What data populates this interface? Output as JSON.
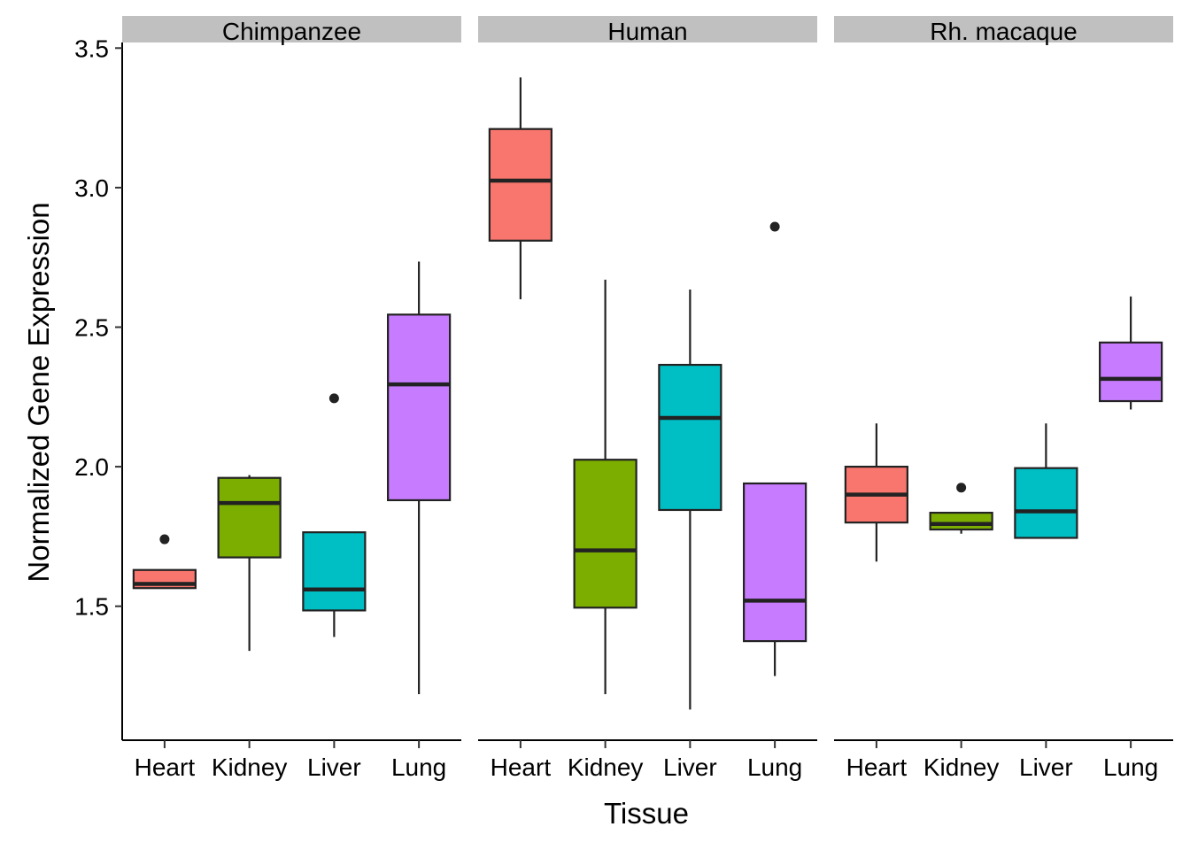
{
  "chart_data": {
    "type": "boxplot",
    "facets": [
      "Chimpanzee",
      "Human",
      "Rh. macaque"
    ],
    "categories": [
      "Heart",
      "Kidney",
      "Liver",
      "Lung"
    ],
    "xlabel": "Tissue",
    "ylabel": "Normalized Gene Expression",
    "yticks": [
      "1.5",
      "2.0",
      "2.5",
      "3.0",
      "3.5"
    ],
    "ylim": [
      1.02,
      3.52
    ],
    "colors": {
      "Heart": "#f8766d",
      "Kidney": "#7cae00",
      "Liver": "#00bfc4",
      "Lung": "#c77cff"
    },
    "boxes": {
      "Chimpanzee": [
        {
          "tissue": "Heart",
          "whisker_low": 1.565,
          "q1": 1.565,
          "median": 1.58,
          "q3": 1.63,
          "whisker_high": 1.63,
          "outliers": [
            1.74
          ]
        },
        {
          "tissue": "Kidney",
          "whisker_low": 1.34,
          "q1": 1.675,
          "median": 1.87,
          "q3": 1.96,
          "whisker_high": 1.97,
          "outliers": []
        },
        {
          "tissue": "Liver",
          "whisker_low": 1.39,
          "q1": 1.485,
          "median": 1.56,
          "q3": 1.765,
          "whisker_high": 1.765,
          "outliers": [
            2.245
          ]
        },
        {
          "tissue": "Lung",
          "whisker_low": 1.185,
          "q1": 1.88,
          "median": 2.295,
          "q3": 2.545,
          "whisker_high": 2.735,
          "outliers": []
        }
      ],
      "Human": [
        {
          "tissue": "Heart",
          "whisker_low": 2.6,
          "q1": 2.81,
          "median": 3.025,
          "q3": 3.21,
          "whisker_high": 3.395,
          "outliers": []
        },
        {
          "tissue": "Kidney",
          "whisker_low": 1.185,
          "q1": 1.495,
          "median": 1.7,
          "q3": 2.025,
          "whisker_high": 2.67,
          "outliers": []
        },
        {
          "tissue": "Liver",
          "whisker_low": 1.13,
          "q1": 1.845,
          "median": 2.175,
          "q3": 2.365,
          "whisker_high": 2.635,
          "outliers": []
        },
        {
          "tissue": "Lung",
          "whisker_low": 1.25,
          "q1": 1.375,
          "median": 1.52,
          "q3": 1.94,
          "whisker_high": 1.94,
          "outliers": [
            2.86
          ]
        }
      ],
      "Rh. macaque": [
        {
          "tissue": "Heart",
          "whisker_low": 1.66,
          "q1": 1.8,
          "median": 1.9,
          "q3": 2.0,
          "whisker_high": 2.155,
          "outliers": []
        },
        {
          "tissue": "Kidney",
          "whisker_low": 1.76,
          "q1": 1.775,
          "median": 1.795,
          "q3": 1.835,
          "whisker_high": 1.835,
          "outliers": [
            1.925
          ]
        },
        {
          "tissue": "Liver",
          "whisker_low": 1.745,
          "q1": 1.745,
          "median": 1.84,
          "q3": 1.995,
          "whisker_high": 2.155,
          "outliers": []
        },
        {
          "tissue": "Lung",
          "whisker_low": 2.205,
          "q1": 2.235,
          "median": 2.315,
          "q3": 2.445,
          "whisker_high": 2.61,
          "outliers": []
        }
      ]
    }
  }
}
